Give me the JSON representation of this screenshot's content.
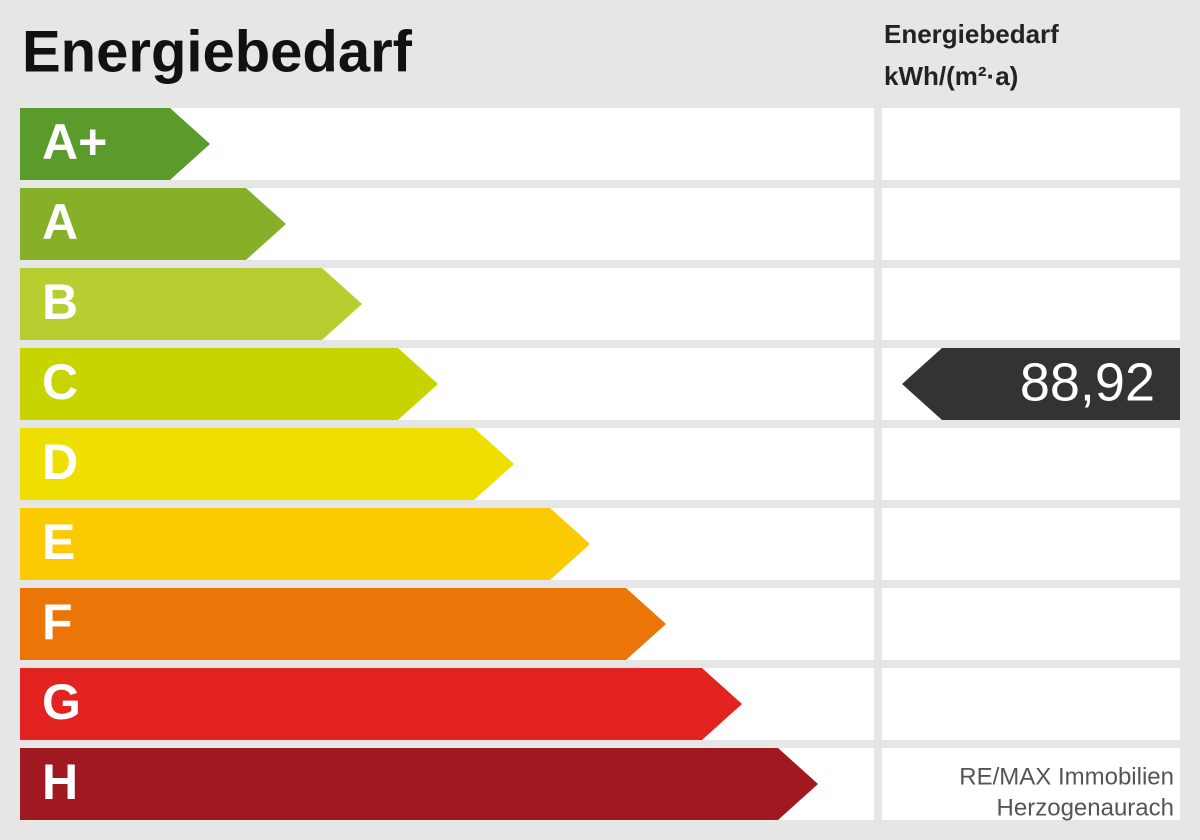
{
  "title": "Energiebedarf",
  "side_header": [
    "Energiebedarf",
    "kWh/(m²·a)"
  ],
  "classes": [
    {
      "label": "A+",
      "color": "#5a9b2c"
    },
    {
      "label": "A",
      "color": "#86b027"
    },
    {
      "label": "B",
      "color": "#b8cd30"
    },
    {
      "label": "C",
      "color": "#c8d400",
      "value": "88,92"
    },
    {
      "label": "D",
      "color": "#eedf00"
    },
    {
      "label": "E",
      "color": "#fbca00"
    },
    {
      "label": "F",
      "color": "#eb7507"
    },
    {
      "label": "G",
      "color": "#e22320"
    },
    {
      "label": "H",
      "color": "#a11920"
    }
  ],
  "footer": [
    "RE/MAX Immobilien",
    "Herzogenaurach"
  ]
}
